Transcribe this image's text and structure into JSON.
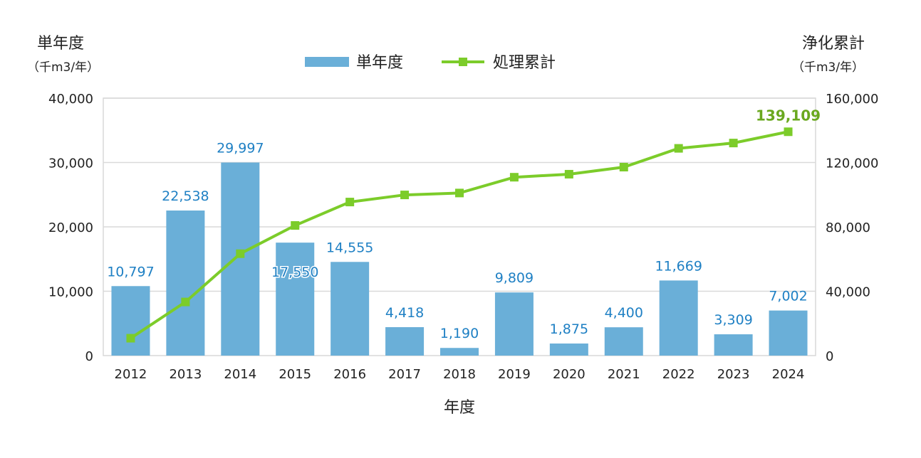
{
  "chart_data": {
    "type": "bar+line",
    "categories": [
      "2012",
      "2013",
      "2014",
      "2015",
      "2016",
      "2017",
      "2018",
      "2019",
      "2020",
      "2021",
      "2022",
      "2023",
      "2024"
    ],
    "series": [
      {
        "name": "単年度",
        "type": "bar",
        "axis": "left",
        "values": [
          10797,
          22538,
          29997,
          17550,
          14555,
          4418,
          1190,
          9809,
          1875,
          4400,
          11669,
          3309,
          7002
        ],
        "labels": [
          "10,797",
          "22,538",
          "29,997",
          "17,550",
          "14,555",
          "4,418",
          "1,190",
          "9,809",
          "1,875",
          "4,400",
          "11,669",
          "3,309",
          "7,002"
        ]
      },
      {
        "name": "処理累計",
        "type": "line",
        "axis": "right",
        "values": [
          10797,
          33335,
          63332,
          80882,
          95437,
          99855,
          101045,
          110854,
          112729,
          117129,
          128798,
          132107,
          139109
        ],
        "last_label": "139,109"
      }
    ],
    "xlabel": "年度",
    "ylabel_left": {
      "title": "単年度",
      "unit": "（千m3/年）"
    },
    "ylabel_right": {
      "title": "浄化累計",
      "unit": "（千m3/年）"
    },
    "ylim_left": [
      0,
      40000
    ],
    "ylim_right": [
      0,
      160000
    ],
    "yticks_left": [
      "0",
      "10,000",
      "20,000",
      "30,000",
      "40,000"
    ],
    "yticks_right": [
      "0",
      "40,000",
      "80,000",
      "120,000",
      "160,000"
    ],
    "grid": true,
    "legend_position": "top-center",
    "colors": {
      "bar": "#6aafd8",
      "line": "#7ccc2a",
      "bar_label": "#1f80c4",
      "line_label": "#6aa81f",
      "grid": "#d9d9d9"
    }
  }
}
